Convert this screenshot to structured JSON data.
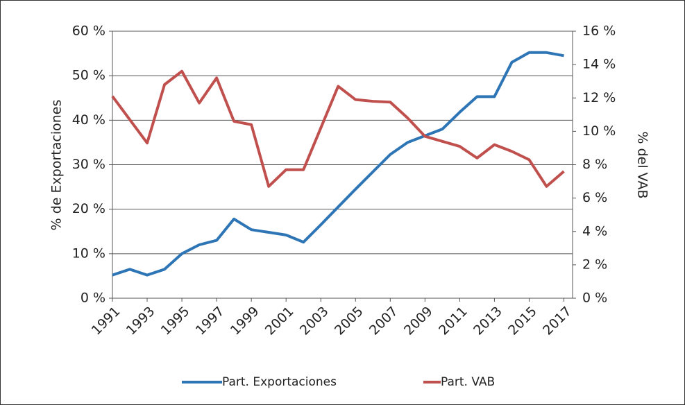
{
  "chart_data": {
    "type": "line",
    "y_label": "% de Exportaciones",
    "y2_label": "% del VAB",
    "x": [
      1991,
      1992,
      1993,
      1994,
      1995,
      1996,
      1997,
      1998,
      1999,
      2000,
      2001,
      2002,
      2003,
      2004,
      2005,
      2006,
      2007,
      2008,
      2009,
      2010,
      2011,
      2012,
      2013,
      2014,
      2015,
      2016,
      2017
    ],
    "xticks": [
      1991,
      1993,
      1995,
      1997,
      1999,
      2001,
      2003,
      2005,
      2007,
      2009,
      2011,
      2013,
      2015,
      2017
    ],
    "xlim": [
      1991,
      2017.5
    ],
    "series": [
      {
        "name": "Part. Exportaciones",
        "color": "#2e75b6",
        "axis": "y",
        "values": [
          5.2,
          6.5,
          5.2,
          6.5,
          10,
          12,
          13,
          17.8,
          15.4,
          14.8,
          14.2,
          12.6,
          16.5,
          20.5,
          24.5,
          28.4,
          32.3,
          35,
          36.5,
          38,
          41.8,
          45.3,
          45.3,
          53,
          55.2,
          55.2,
          54.5
        ]
      },
      {
        "name": "Part. VAB",
        "color": "#c0504d",
        "axis": "y2",
        "values": [
          12.1,
          10.7,
          9.3,
          12.8,
          13.6,
          11.7,
          13.2,
          10.6,
          10.4,
          6.7,
          7.7,
          7.7,
          10.2,
          12.7,
          11.9,
          11.8,
          11.75,
          10.8,
          9.7,
          9.4,
          9.1,
          8.4,
          9.2,
          8.8,
          8.3,
          6.7,
          7.6
        ]
      }
    ],
    "ylim": [
      0,
      60
    ],
    "yticks": [
      {
        "value": 0,
        "label": "0 %"
      },
      {
        "value": 10,
        "label": "10 %"
      },
      {
        "value": 20,
        "label": "20 %"
      },
      {
        "value": 30,
        "label": "30 %"
      },
      {
        "value": 40,
        "label": "40 %"
      },
      {
        "value": 50,
        "label": "50 %"
      },
      {
        "value": 60,
        "label": "60 %"
      }
    ],
    "y2lim": [
      0,
      16
    ],
    "y2ticks": [
      {
        "value": 0,
        "label": "0 %"
      },
      {
        "value": 2,
        "label": "2 %"
      },
      {
        "value": 4,
        "label": "4 %"
      },
      {
        "value": 6,
        "label": "6 %"
      },
      {
        "value": 8,
        "label": "8 %"
      },
      {
        "value": 10,
        "label": "10 %"
      },
      {
        "value": 12,
        "label": "12 %"
      },
      {
        "value": 14,
        "label": "14 %"
      },
      {
        "value": 16,
        "label": "16 %"
      }
    ],
    "grid": true
  }
}
